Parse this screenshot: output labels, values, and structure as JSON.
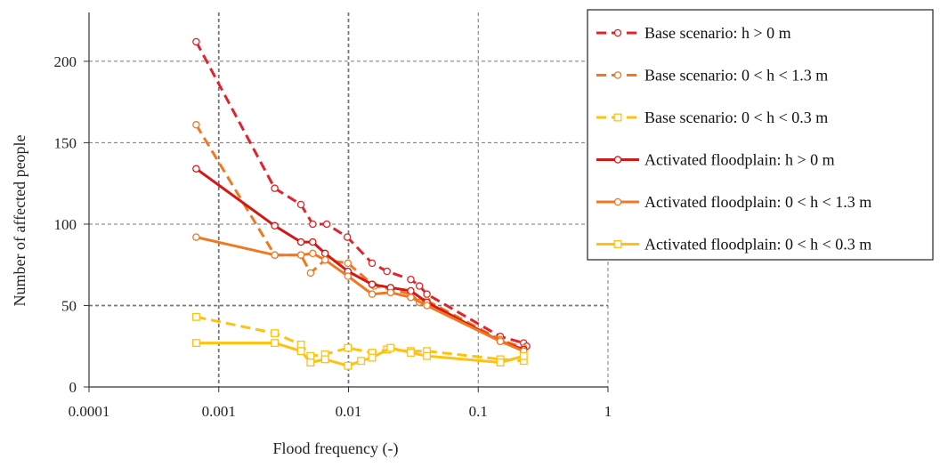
{
  "chart_data": {
    "type": "line",
    "title": "",
    "xlabel": "Flood frequency (-)",
    "ylabel": "Number of affected people",
    "x_scale": "log",
    "xlim": [
      0.0001,
      1
    ],
    "ylim": [
      0,
      230
    ],
    "x_ticks": [
      "0.0001",
      "0.001",
      "0.01",
      "0.1",
      "1"
    ],
    "y_ticks": [
      "0",
      "50",
      "100",
      "150",
      "200"
    ],
    "grid": "dashed",
    "legend_position": "top-right",
    "series": [
      {
        "name": "Base scenario: h > 0 m",
        "color": "#e0242c",
        "line_style": "dashed",
        "marker": "circle",
        "x": [
          0.00067,
          0.0027,
          0.0043,
          0.0053,
          0.0068,
          0.0098,
          0.0152,
          0.0198,
          0.0302,
          0.0352,
          0.0402,
          0.148,
          0.224,
          0.236
        ],
        "y": [
          212,
          122,
          112,
          100,
          100,
          92,
          76,
          71,
          66,
          62,
          57,
          31,
          27,
          25
        ]
      },
      {
        "name": "Base scenario: 0 < h < 1.3 m",
        "color": "#f07820",
        "line_style": "dashed",
        "marker": "circle",
        "x": [
          0.00067,
          0.0027,
          0.0043,
          0.0051,
          0.0066,
          0.0099,
          0.0158,
          0.0211,
          0.0302,
          0.0352,
          0.0402,
          0.148,
          0.224
        ],
        "y": [
          161,
          81,
          81,
          70,
          78,
          76,
          62,
          60,
          57,
          52,
          53,
          29,
          24
        ]
      },
      {
        "name": "Base scenario: 0 < h < 0.3 m",
        "color": "#ffc20e",
        "line_style": "dashed",
        "marker": "square",
        "x": [
          0.00067,
          0.0027,
          0.0043,
          0.0051,
          0.0066,
          0.0099,
          0.0152,
          0.0198,
          0.0302,
          0.0402,
          0.148,
          0.224
        ],
        "y": [
          43,
          33,
          26,
          19,
          20,
          24,
          21,
          23,
          22,
          22,
          17,
          16
        ]
      },
      {
        "name": "Activated floodplain: h > 0 m",
        "color": "#d41818",
        "line_style": "solid",
        "marker": "circle",
        "x": [
          0.00067,
          0.0027,
          0.0043,
          0.0053,
          0.0066,
          0.0099,
          0.0152,
          0.0211,
          0.0302,
          0.0402,
          0.148,
          0.224
        ],
        "y": [
          134,
          99,
          89,
          89,
          82,
          71,
          63,
          61,
          59,
          52,
          28,
          23
        ]
      },
      {
        "name": "Activated floodplain: 0 < h < 1.3 m",
        "color": "#f07820",
        "line_style": "solid",
        "marker": "circle",
        "x": [
          0.00067,
          0.0027,
          0.0043,
          0.0053,
          0.0066,
          0.0099,
          0.0152,
          0.0211,
          0.0302,
          0.0402,
          0.148,
          0.224
        ],
        "y": [
          92,
          81,
          81,
          82,
          78,
          68,
          57,
          58,
          55,
          50,
          28,
          22
        ]
      },
      {
        "name": "Activated floodplain: 0 < h < 0.3 m",
        "color": "#ffc20e",
        "line_style": "solid",
        "marker": "square",
        "x": [
          0.00067,
          0.0027,
          0.0043,
          0.0051,
          0.0066,
          0.0099,
          0.0125,
          0.0152,
          0.0211,
          0.0302,
          0.0402,
          0.148,
          0.224
        ],
        "y": [
          27,
          27,
          22,
          15,
          17,
          13,
          16,
          18,
          24,
          21,
          19,
          15,
          19
        ]
      }
    ]
  }
}
